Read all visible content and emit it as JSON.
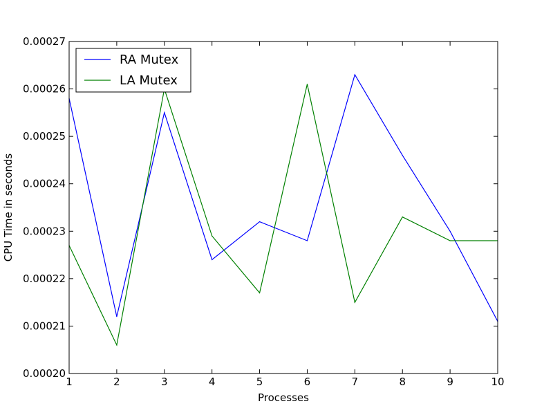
{
  "chart_data": {
    "type": "line",
    "title": "",
    "xlabel": "Processes",
    "ylabel": "CPU Time in seconds",
    "x": [
      1,
      2,
      3,
      4,
      5,
      6,
      7,
      8,
      9,
      10
    ],
    "xlim": [
      1,
      10
    ],
    "ylim": [
      0.0002,
      0.00027
    ],
    "x_ticks": [
      "1",
      "2",
      "3",
      "4",
      "5",
      "6",
      "7",
      "8",
      "9",
      "10"
    ],
    "y_ticks": [
      {
        "value": 0.0002,
        "label": "0.00020"
      },
      {
        "value": 0.00021,
        "label": "0.00021"
      },
      {
        "value": 0.00022,
        "label": "0.00022"
      },
      {
        "value": 0.00023,
        "label": "0.00023"
      },
      {
        "value": 0.00024,
        "label": "0.00024"
      },
      {
        "value": 0.00025,
        "label": "0.00025"
      },
      {
        "value": 0.00026,
        "label": "0.00026"
      },
      {
        "value": 0.00027,
        "label": "0.00027"
      }
    ],
    "grid": false,
    "legend_position": "top-left",
    "series": [
      {
        "name": "RA Mutex",
        "color": "#0000ff",
        "values": [
          0.000258,
          0.000212,
          0.000255,
          0.000224,
          0.000232,
          0.000228,
          0.000263,
          0.000246,
          0.00023,
          0.000211
        ]
      },
      {
        "name": "LA Mutex",
        "color": "#008000",
        "values": [
          0.000227,
          0.000206,
          0.00026,
          0.000229,
          0.000217,
          0.000261,
          0.000215,
          0.000233,
          0.000228,
          0.000228
        ]
      }
    ]
  }
}
